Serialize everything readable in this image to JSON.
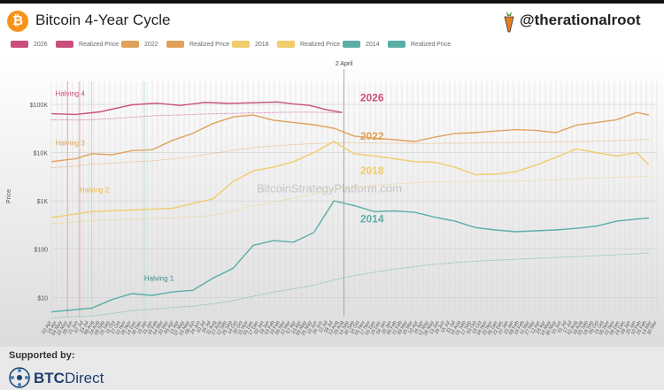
{
  "header": {
    "title": "Bitcoin 4-Year Cycle",
    "handle": "@therationalroot",
    "logo_symbol": "₿",
    "colors": {
      "bitcoin": "#f7931a"
    }
  },
  "footer": {
    "supported_label": "Supported by:",
    "brand_strong": "BTC",
    "brand_rest": "Direct"
  },
  "chart_data": {
    "type": "line",
    "watermark": "BitcoinStrategyPlatform.com",
    "ylabel": "Price",
    "yscale": "log",
    "ylim": [
      4,
      300000
    ],
    "yticks": [
      {
        "value": 10,
        "label": "$10"
      },
      {
        "value": 100,
        "label": "$100"
      },
      {
        "value": 1000,
        "label": "$1K"
      },
      {
        "value": 10000,
        "label": "$10K"
      },
      {
        "value": 100000,
        "label": "$100K"
      }
    ],
    "xlim": [
      0,
      1500
    ],
    "xtick_labels": [
      "02 Apr",
      "18 Apr",
      "04 May",
      "20 May",
      "05 Jun",
      "21 Jun",
      "07 Jul",
      "23 Jul",
      "08 Aug",
      "24 Aug",
      "09 Sep",
      "25 Sep",
      "11 Oct",
      "27 Oct",
      "12 Nov",
      "28 Nov",
      "14 Dec",
      "30 Dec",
      "15 Jan",
      "31 Jan",
      "16 Feb",
      "04 Mar",
      "20 Mar",
      "05 Apr",
      "21 Apr",
      "07 May",
      "23 May",
      "08 Jun",
      "24 Jun",
      "10 Jul",
      "26 Jul",
      "11 Aug",
      "27 Aug",
      "12 Sep",
      "28 Sep",
      "14 Oct",
      "30 Oct",
      "15 Nov",
      "01 Dec",
      "17 Dec",
      "02 Jan",
      "18 Jan",
      "03 Feb",
      "19 Feb",
      "06 Mar",
      "22 Mar",
      "07 Apr",
      "23 Apr",
      "09 May",
      "25 May",
      "10 Jun",
      "26 Jun",
      "12 Jul",
      "28 Jul",
      "13 Aug",
      "29 Aug",
      "14 Sep",
      "30 Sep",
      "16 Oct",
      "01 Nov",
      "17 Nov",
      "03 Dec",
      "19 Dec",
      "04 Jan",
      "20 Jan",
      "05 Feb",
      "21 Feb",
      "09 Mar",
      "25 Mar",
      "10 Apr",
      "26 Apr",
      "12 May",
      "28 May",
      "13 Jun",
      "29 Jun",
      "15 Jul",
      "31 Jul",
      "16 Aug",
      "01 Sep",
      "17 Sep",
      "03 Oct",
      "19 Oct",
      "04 Nov",
      "20 Nov",
      "06 Dec",
      "22 Dec",
      "07 Jan",
      "23 Jan",
      "08 Feb",
      "24 Feb",
      "11 Mar",
      "27 Mar",
      "12 Apr",
      "28 Apr",
      "14 May",
      "30 May",
      "15 Jun",
      "01 Jul",
      "17 Jul",
      "02 Aug",
      "18 Aug",
      "03 Sep",
      "19 Sep",
      "05 Oct",
      "21 Oct",
      "06 Nov",
      "22 Nov",
      "08 Dec",
      "24 Dec",
      "09 Jan",
      "25 Jan",
      "10 Feb",
      "26 Feb",
      "14 Mar",
      "30 Mar"
    ],
    "grid": true,
    "legend_position": "top",
    "legend": [
      {
        "label": "2026",
        "color": "#c94f7c"
      },
      {
        "label": "Realized Price",
        "color": "#c94f7c"
      },
      {
        "label": "2022",
        "color": "#e0a25a"
      },
      {
        "label": "Realized Price",
        "color": "#e0a25a"
      },
      {
        "label": "2018",
        "color": "#f0cc6a"
      },
      {
        "label": "Realized Price",
        "color": "#f0cc6a"
      },
      {
        "label": "2014",
        "color": "#5aaea8"
      },
      {
        "label": "Realized Price",
        "color": "#5aaea8"
      }
    ],
    "halvings": [
      {
        "label": "Halving 4",
        "x": 10,
        "value": 150000,
        "color": "#c94f7c"
      },
      {
        "label": "Halving 3",
        "x": 10,
        "value": 14000,
        "color": "#e0a25a"
      },
      {
        "label": "Halving 2",
        "x": 70,
        "value": 1500,
        "color": "#e8b84a"
      },
      {
        "label": "Halving 1",
        "x": 230,
        "value": 22,
        "color": "#3e8f8a"
      }
    ],
    "vertical_marker": {
      "label": "2 April",
      "x": 725
    },
    "halving_lines_x": [
      40,
      70,
      100,
      230
    ],
    "series": [
      {
        "name": "2026",
        "color": "#c94f7c",
        "label_x": 765,
        "label_value": 115000,
        "points": [
          [
            0,
            64000
          ],
          [
            60,
            62000
          ],
          [
            120,
            70000
          ],
          [
            200,
            98000
          ],
          [
            260,
            106000
          ],
          [
            320,
            95000
          ],
          [
            380,
            110000
          ],
          [
            440,
            105000
          ],
          [
            500,
            108000
          ],
          [
            560,
            112000
          ],
          [
            600,
            102000
          ],
          [
            640,
            95000
          ],
          [
            680,
            78000
          ],
          [
            720,
            68000
          ]
        ]
      },
      {
        "name": "2022",
        "color": "#e0a25a",
        "label_x": 765,
        "label_value": 18500,
        "points": [
          [
            0,
            6500
          ],
          [
            60,
            7500
          ],
          [
            100,
            9500
          ],
          [
            150,
            9000
          ],
          [
            200,
            11000
          ],
          [
            250,
            11500
          ],
          [
            300,
            18000
          ],
          [
            350,
            25000
          ],
          [
            400,
            40000
          ],
          [
            450,
            55000
          ],
          [
            500,
            60000
          ],
          [
            550,
            47000
          ],
          [
            600,
            42000
          ],
          [
            650,
            38000
          ],
          [
            700,
            32000
          ],
          [
            750,
            22000
          ],
          [
            800,
            20000
          ],
          [
            850,
            18500
          ],
          [
            900,
            17000
          ],
          [
            950,
            21000
          ],
          [
            1000,
            25000
          ],
          [
            1050,
            26000
          ],
          [
            1100,
            28000
          ],
          [
            1150,
            30000
          ],
          [
            1200,
            29000
          ],
          [
            1250,
            26000
          ],
          [
            1300,
            37000
          ],
          [
            1350,
            42000
          ],
          [
            1400,
            48000
          ],
          [
            1450,
            68000
          ],
          [
            1480,
            60000
          ]
        ]
      },
      {
        "name": "2018",
        "color": "#f0cc6a",
        "label_x": 765,
        "label_value": 3600,
        "points": [
          [
            0,
            450
          ],
          [
            100,
            600
          ],
          [
            200,
            650
          ],
          [
            300,
            700
          ],
          [
            400,
            1100
          ],
          [
            450,
            2500
          ],
          [
            500,
            4200
          ],
          [
            550,
            5000
          ],
          [
            600,
            6500
          ],
          [
            650,
            10000
          ],
          [
            700,
            17000
          ],
          [
            750,
            9500
          ],
          [
            800,
            8500
          ],
          [
            850,
            7500
          ],
          [
            900,
            6500
          ],
          [
            950,
            6300
          ],
          [
            1000,
            5000
          ],
          [
            1050,
            3500
          ],
          [
            1100,
            3600
          ],
          [
            1150,
            4000
          ],
          [
            1200,
            5500
          ],
          [
            1250,
            8000
          ],
          [
            1300,
            12000
          ],
          [
            1350,
            10000
          ],
          [
            1400,
            8500
          ],
          [
            1450,
            10000
          ],
          [
            1480,
            5500
          ]
        ]
      },
      {
        "name": "2014",
        "color": "#5aaea8",
        "label_x": 765,
        "label_value": 360,
        "points": [
          [
            0,
            5
          ],
          [
            50,
            5.5
          ],
          [
            100,
            6
          ],
          [
            150,
            9
          ],
          [
            200,
            12
          ],
          [
            250,
            11
          ],
          [
            300,
            13
          ],
          [
            350,
            14
          ],
          [
            400,
            25
          ],
          [
            450,
            40
          ],
          [
            500,
            120
          ],
          [
            550,
            150
          ],
          [
            600,
            140
          ],
          [
            650,
            220
          ],
          [
            700,
            1000
          ],
          [
            750,
            800
          ],
          [
            800,
            600
          ],
          [
            850,
            620
          ],
          [
            900,
            580
          ],
          [
            950,
            460
          ],
          [
            1000,
            380
          ],
          [
            1050,
            280
          ],
          [
            1100,
            250
          ],
          [
            1150,
            230
          ],
          [
            1200,
            240
          ],
          [
            1250,
            250
          ],
          [
            1300,
            270
          ],
          [
            1350,
            300
          ],
          [
            1400,
            380
          ],
          [
            1450,
            420
          ],
          [
            1480,
            440
          ]
        ]
      }
    ]
  }
}
